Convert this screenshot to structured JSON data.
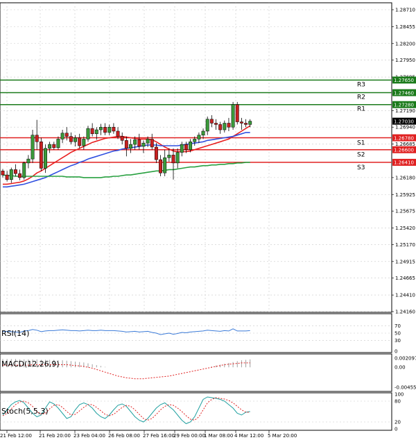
{
  "chart_data": {
    "type": "candlestick",
    "title": "",
    "y_ticks": [
      "1.28710",
      "1.28455",
      "1.28200",
      "1.27950",
      "1.27695",
      "1.27190",
      "1.26940",
      "1.26685",
      "1.26180",
      "1.25925",
      "1.25675",
      "1.25420",
      "1.25170",
      "1.24915",
      "1.24665",
      "1.24410",
      "1.24160"
    ],
    "x_ticks": [
      "21 Feb 12:00",
      "21 Feb 20:00",
      "23 Feb 04:00",
      "26 Feb 08:00",
      "27 Feb 16:00",
      "29 Feb 00:00",
      "1 Mar 08:00",
      "4 Mar 12:00",
      "5 Mar 20:00"
    ],
    "ylim": [
      1.2416,
      1.2871
    ],
    "current_price": "1.27030",
    "levels": [
      {
        "label": "R3",
        "value": "1.27650",
        "color": "#1a7a1a"
      },
      {
        "label": "R2",
        "value": "1.27460",
        "color": "#1a7a1a"
      },
      {
        "label": "R1",
        "value": "1.27280",
        "color": "#1a7a1a"
      },
      {
        "label": "S1",
        "value": "1.26780",
        "color": "#e02020"
      },
      {
        "label": "S2",
        "value": "1.26600",
        "color": "#e02020"
      },
      {
        "label": "S3",
        "value": "1.26410",
        "color": "#e02020"
      }
    ],
    "candles": [
      [
        1.2628,
        1.2631,
        1.2618,
        1.2622
      ],
      [
        1.2622,
        1.2628,
        1.2612,
        1.2615
      ],
      [
        1.2615,
        1.2633,
        1.261,
        1.263
      ],
      [
        1.263,
        1.2638,
        1.262,
        1.2624
      ],
      [
        1.2624,
        1.263,
        1.2614,
        1.2618
      ],
      [
        1.2618,
        1.2642,
        1.2615,
        1.264
      ],
      [
        1.264,
        1.2652,
        1.2632,
        1.2646
      ],
      [
        1.2646,
        1.269,
        1.264,
        1.2682
      ],
      [
        1.2682,
        1.2705,
        1.266,
        1.2672
      ],
      [
        1.2672,
        1.2678,
        1.2628,
        1.2632
      ],
      [
        1.2632,
        1.2668,
        1.2625,
        1.2662
      ],
      [
        1.2662,
        1.2672,
        1.2655,
        1.2668
      ],
      [
        1.2668,
        1.2672,
        1.266,
        1.2663
      ],
      [
        1.2663,
        1.268,
        1.266,
        1.2676
      ],
      [
        1.2676,
        1.269,
        1.267,
        1.2685
      ],
      [
        1.2685,
        1.2694,
        1.2674,
        1.268
      ],
      [
        1.268,
        1.2686,
        1.2668,
        1.2672
      ],
      [
        1.2672,
        1.2682,
        1.2665,
        1.2678
      ],
      [
        1.2678,
        1.2684,
        1.2662,
        1.2666
      ],
      [
        1.2666,
        1.268,
        1.266,
        1.2676
      ],
      [
        1.2676,
        1.2696,
        1.2672,
        1.2692
      ],
      [
        1.2692,
        1.27,
        1.268,
        1.2684
      ],
      [
        1.2684,
        1.2694,
        1.2675,
        1.269
      ],
      [
        1.269,
        1.2699,
        1.2682,
        1.2694
      ],
      [
        1.2694,
        1.27,
        1.2682,
        1.2686
      ],
      [
        1.2686,
        1.2698,
        1.2682,
        1.2694
      ],
      [
        1.2694,
        1.27,
        1.2684,
        1.2688
      ],
      [
        1.2688,
        1.2694,
        1.2676,
        1.268
      ],
      [
        1.268,
        1.2686,
        1.2668,
        1.2674
      ],
      [
        1.2674,
        1.268,
        1.265,
        1.2662
      ],
      [
        1.2662,
        1.2676,
        1.2655,
        1.2668
      ],
      [
        1.2668,
        1.268,
        1.266,
        1.2675
      ],
      [
        1.2675,
        1.2684,
        1.266,
        1.2665
      ],
      [
        1.2665,
        1.2674,
        1.2655,
        1.267
      ],
      [
        1.267,
        1.268,
        1.2664,
        1.2676
      ],
      [
        1.2676,
        1.2684,
        1.266,
        1.2664
      ],
      [
        1.2664,
        1.267,
        1.264,
        1.2645
      ],
      [
        1.2645,
        1.2652,
        1.262,
        1.2625
      ],
      [
        1.2625,
        1.266,
        1.262,
        1.2648
      ],
      [
        1.2648,
        1.2662,
        1.2642,
        1.2652
      ],
      [
        1.2652,
        1.2662,
        1.2615,
        1.264
      ],
      [
        1.264,
        1.2662,
        1.2632,
        1.2656
      ],
      [
        1.2656,
        1.2672,
        1.265,
        1.2668
      ],
      [
        1.2668,
        1.2672,
        1.2655,
        1.266
      ],
      [
        1.266,
        1.2676,
        1.2656,
        1.2672
      ],
      [
        1.2672,
        1.268,
        1.2666,
        1.2676
      ],
      [
        1.2676,
        1.2686,
        1.267,
        1.2682
      ],
      [
        1.2682,
        1.2692,
        1.2676,
        1.2688
      ],
      [
        1.2688,
        1.271,
        1.2682,
        1.2706
      ],
      [
        1.2706,
        1.2712,
        1.2694,
        1.27
      ],
      [
        1.27,
        1.2706,
        1.269,
        1.2698
      ],
      [
        1.2698,
        1.2702,
        1.2684,
        1.269
      ],
      [
        1.269,
        1.2704,
        1.2686,
        1.27
      ],
      [
        1.27,
        1.2708,
        1.2688,
        1.2694
      ],
      [
        1.2694,
        1.2732,
        1.269,
        1.2728
      ],
      [
        1.2728,
        1.2732,
        1.2698,
        1.2702
      ],
      [
        1.2702,
        1.2708,
        1.269,
        1.27
      ],
      [
        1.27,
        1.2706,
        1.2694,
        1.2698
      ],
      [
        1.2698,
        1.2706,
        1.2694,
        1.2703
      ]
    ],
    "ma_lines": [
      {
        "name": "",
        "color": "#e82020",
        "values": [
          1.2608,
          1.2608,
          1.2609,
          1.261,
          1.2611,
          1.2613,
          1.2616,
          1.262,
          1.2625,
          1.2628,
          1.2632,
          1.2636,
          1.264,
          1.2644,
          1.2648,
          1.2652,
          1.2656,
          1.2659,
          1.2662,
          1.2665,
          1.2668,
          1.2671,
          1.2673,
          1.2675,
          1.2677,
          1.2678,
          1.2679,
          1.268,
          1.268,
          1.2679,
          1.2678,
          1.2677,
          1.2676,
          1.2676,
          1.2676,
          1.2675,
          1.2672,
          1.2668,
          1.2664,
          1.2661,
          1.2658,
          1.2657,
          1.2657,
          1.2657,
          1.2658,
          1.266,
          1.2662,
          1.2664,
          1.2666,
          1.2668,
          1.267,
          1.2672,
          1.2674,
          1.2676,
          1.268,
          1.2684,
          1.2688,
          1.2692,
          1.2696
        ]
      },
      {
        "name": "",
        "color": "#3050e0",
        "values": [
          1.2604,
          1.2604,
          1.2605,
          1.2606,
          1.2607,
          1.2608,
          1.261,
          1.2612,
          1.2614,
          1.2616,
          1.2618,
          1.2621,
          1.2624,
          1.2627,
          1.263,
          1.2633,
          1.2636,
          1.2638,
          1.2641,
          1.2643,
          1.2646,
          1.2648,
          1.265,
          1.2652,
          1.2654,
          1.2656,
          1.2658,
          1.2659,
          1.2661,
          1.2662,
          1.2663,
          1.2664,
          1.2665,
          1.2666,
          1.2667,
          1.2667,
          1.2667,
          1.2666,
          1.2666,
          1.2666,
          1.2666,
          1.2666,
          1.2667,
          1.2668,
          1.2669,
          1.267,
          1.2671,
          1.2672,
          1.2674,
          1.2675,
          1.2676,
          1.2677,
          1.2678,
          1.2679,
          1.268,
          1.2682,
          1.2684,
          1.2686,
          1.2686
        ]
      },
      {
        "name": "",
        "color": "#28a040",
        "values": [
          1.2622,
          1.2621,
          1.2621,
          1.262,
          1.262,
          1.262,
          1.262,
          1.262,
          1.262,
          1.262,
          1.262,
          1.262,
          1.262,
          1.262,
          1.262,
          1.2619,
          1.2619,
          1.2619,
          1.2619,
          1.2618,
          1.2618,
          1.2618,
          1.2618,
          1.2618,
          1.2619,
          1.2619,
          1.262,
          1.262,
          1.2621,
          1.2622,
          1.2622,
          1.2623,
          1.2624,
          1.2625,
          1.2626,
          1.2627,
          1.2628,
          1.2628,
          1.2629,
          1.263,
          1.263,
          1.2631,
          1.2632,
          1.2633,
          1.2634,
          1.2634,
          1.2635,
          1.2636,
          1.2636,
          1.2637,
          1.2637,
          1.2638,
          1.2638,
          1.2639,
          1.2639,
          1.264,
          1.264,
          1.2641,
          1.2641
        ]
      }
    ],
    "rsi": {
      "label": "RSI(14)",
      "ticks": [
        "70",
        "50",
        "30",
        "0"
      ],
      "values": [
        54,
        55,
        54,
        53,
        52,
        56,
        57,
        60,
        58,
        54,
        56,
        57,
        57,
        58,
        59,
        58,
        57,
        57,
        56,
        57,
        58,
        57,
        57,
        58,
        57,
        57,
        57,
        56,
        55,
        53,
        54,
        55,
        53,
        54,
        55,
        52,
        50,
        46,
        48,
        50,
        47,
        49,
        52,
        51,
        53,
        54,
        55,
        56,
        58,
        57,
        56,
        55,
        57,
        56,
        62,
        56,
        56,
        56,
        57
      ]
    },
    "macd": {
      "label": "MACD(12,26,9)",
      "ticks": [
        "0.002097",
        "0.00",
        "-0.004555"
      ],
      "histogram": [
        0.0019,
        0.0019,
        0.0019,
        0.0019,
        0.0018,
        0.0018,
        0.0018,
        0.0018,
        0.0018,
        0.0017,
        0.0017,
        0.0017,
        0.0017,
        0.0016,
        0.0016,
        0.0015,
        0.0014,
        0.0013,
        0.0012,
        0.0011,
        0.0009,
        0.0007,
        0.0005,
        0.0003,
        0.0001,
        0,
        0,
        0,
        0,
        0,
        0,
        0,
        0,
        0,
        0,
        0,
        0,
        0,
        0,
        0,
        0,
        0,
        0,
        0,
        0,
        0,
        0,
        0,
        0,
        0.0002,
        0.0004,
        0.0006,
        0.0008,
        0.001,
        0.0012,
        0.0014,
        0.0016,
        0.0017,
        0.0018
      ],
      "signal": [
        0.0005,
        0.0005,
        0.0005,
        0.0005,
        0.0005,
        0.0005,
        0.0005,
        0.0006,
        0.0006,
        0.0006,
        0.0006,
        0.0006,
        0.0006,
        0.0006,
        0.0006,
        0.0006,
        0.0005,
        0.0004,
        0.0003,
        0.0002,
        0.0,
        -0.0002,
        -0.0005,
        -0.0008,
        -0.0011,
        -0.0014,
        -0.0017,
        -0.002,
        -0.0022,
        -0.0024,
        -0.0025,
        -0.0026,
        -0.0026,
        -0.0026,
        -0.0025,
        -0.0024,
        -0.0023,
        -0.0022,
        -0.0021,
        -0.002,
        -0.0018,
        -0.0016,
        -0.0014,
        -0.0012,
        -0.001,
        -0.0008,
        -0.0006,
        -0.0004,
        -0.0002,
        0.0,
        0.0002,
        0.0004,
        0.0006,
        0.0007,
        0.0008,
        0.0009,
        0.001,
        0.001,
        0.001
      ]
    },
    "stoch": {
      "label": "Stoch(5,5,3)",
      "ticks": [
        "100",
        "80",
        "20",
        "0"
      ],
      "k": [
        40,
        55,
        70,
        78,
        82,
        75,
        60,
        45,
        35,
        40,
        60,
        78,
        72,
        60,
        45,
        30,
        35,
        55,
        70,
        75,
        70,
        60,
        45,
        35,
        30,
        40,
        55,
        68,
        72,
        65,
        50,
        35,
        25,
        20,
        30,
        45,
        60,
        70,
        75,
        65,
        55,
        40,
        25,
        15,
        20,
        35,
        60,
        85,
        92,
        90,
        88,
        85,
        80,
        70,
        60,
        45,
        40,
        48,
        50
      ],
      "d": [
        38,
        45,
        58,
        70,
        78,
        80,
        75,
        65,
        50,
        42,
        45,
        58,
        68,
        70,
        62,
        50,
        40,
        42,
        52,
        62,
        70,
        70,
        62,
        52,
        42,
        38,
        42,
        52,
        62,
        68,
        65,
        55,
        42,
        30,
        25,
        30,
        42,
        55,
        65,
        70,
        68,
        60,
        50,
        38,
        28,
        25,
        35,
        55,
        75,
        85,
        90,
        88,
        86,
        82,
        75,
        65,
        55,
        48,
        48
      ]
    }
  }
}
